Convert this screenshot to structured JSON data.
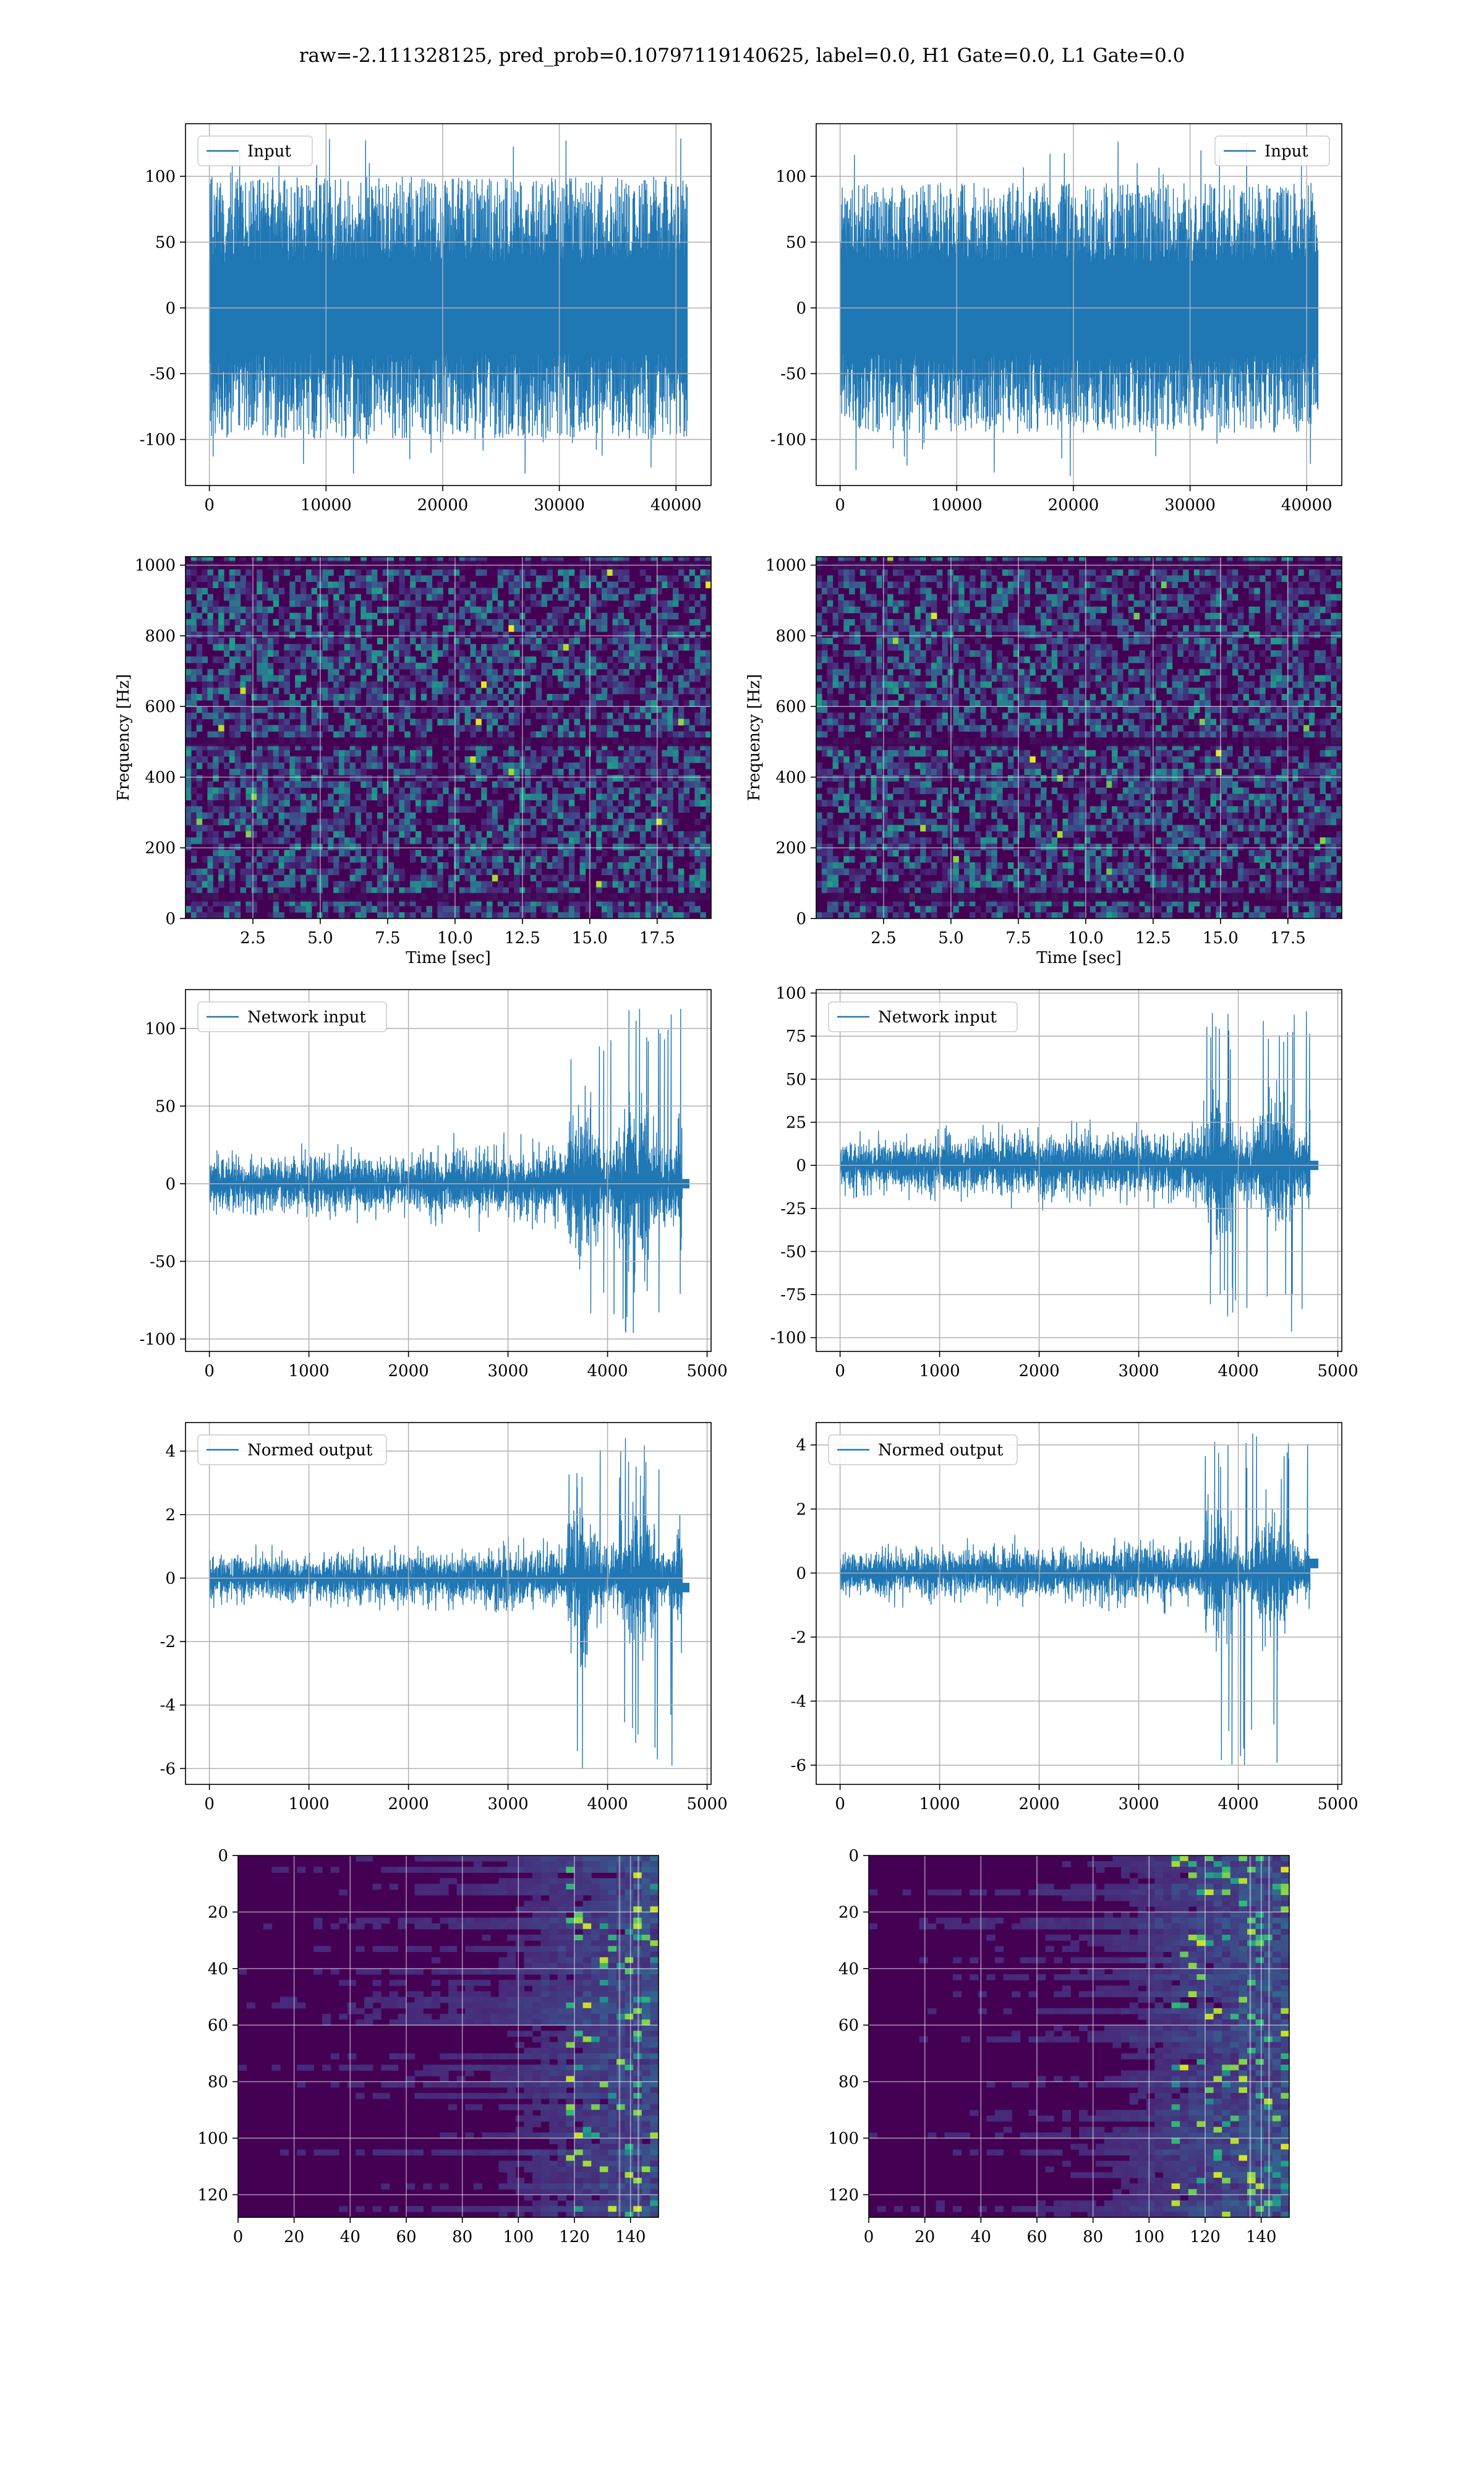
{
  "suptitle": "raw=-2.111328125, pred_prob=0.10797119140625, label=0.0, H1 Gate=0.0, L1 Gate=0.0",
  "colors": {
    "line": "#1f77b4",
    "grid": "#b0b0b0",
    "viridis_low": "#440154",
    "viridis_high": "#fde725"
  },
  "chart_data": [
    {
      "id": "input-h1",
      "type": "line",
      "legend": "Input",
      "legend_loc": "upper-left",
      "grid": true,
      "xlim": [
        -2048,
        43008
      ],
      "ylim": [
        -135,
        140
      ],
      "xticks": [
        0,
        10000,
        20000,
        30000,
        40000
      ],
      "yticks": [
        -100,
        -50,
        0,
        50,
        100
      ],
      "signal": {
        "n": 40960,
        "core": [
          -35,
          35
        ],
        "envelope": [
          -100,
          100
        ],
        "peaks": [
          -128,
          130
        ]
      }
    },
    {
      "id": "input-l1",
      "type": "line",
      "legend": "Input",
      "legend_loc": "upper-right",
      "grid": true,
      "xlim": [
        -2048,
        43008
      ],
      "ylim": [
        -135,
        140
      ],
      "xticks": [
        0,
        10000,
        20000,
        30000,
        40000
      ],
      "yticks": [
        -100,
        -50,
        0,
        50,
        100
      ],
      "signal": {
        "n": 40960,
        "core": [
          -35,
          35
        ],
        "envelope": [
          -95,
          95
        ],
        "peaks": [
          -128,
          128
        ]
      }
    },
    {
      "id": "spec-h1",
      "type": "heatmap",
      "grid": true,
      "xlabel": "Time [sec]",
      "ylabel": "Frequency [Hz]",
      "xlim": [
        0,
        19.5
      ],
      "ylim": [
        0,
        1024
      ],
      "xticks": [
        2.5,
        5.0,
        7.5,
        10.0,
        12.5,
        15.0,
        17.5
      ],
      "yticks": [
        0,
        200,
        400,
        600,
        800,
        1000
      ],
      "dark_bands_hz": [
        60,
        500,
        1000
      ]
    },
    {
      "id": "spec-l1",
      "type": "heatmap",
      "grid": true,
      "xlabel": "Time [sec]",
      "ylabel": "Frequency [Hz]",
      "xlim": [
        0,
        19.5
      ],
      "ylim": [
        0,
        1024
      ],
      "xticks": [
        2.5,
        5.0,
        7.5,
        10.0,
        12.5,
        15.0,
        17.5
      ],
      "yticks": [
        0,
        200,
        400,
        600,
        800,
        1000
      ],
      "dark_bands_hz": [
        60,
        500,
        1000
      ]
    },
    {
      "id": "net-h1",
      "type": "line",
      "legend": "Network input",
      "legend_loc": "upper-left",
      "grid": true,
      "xlim": [
        -240,
        5040
      ],
      "ylim": [
        -108,
        125
      ],
      "xticks": [
        0,
        1000,
        2000,
        3000,
        4000,
        5000
      ],
      "yticks": [
        -100,
        -50,
        0,
        50,
        100
      ],
      "signal": {
        "n": 4800,
        "end": 4750,
        "tail_end": 4820,
        "tail_offset": 0,
        "quiet": 20,
        "burst": 65,
        "burst_start": 3600,
        "peaks": [
          -97,
          114
        ]
      }
    },
    {
      "id": "net-l1",
      "type": "line",
      "legend": "Network input",
      "legend_loc": "upper-left",
      "grid": true,
      "xlim": [
        -240,
        5040
      ],
      "ylim": [
        -108,
        102
      ],
      "xticks": [
        0,
        1000,
        2000,
        3000,
        4000,
        5000
      ],
      "yticks": [
        -100,
        -75,
        -50,
        -25,
        0,
        25,
        50,
        75,
        100
      ],
      "signal": {
        "n": 4800,
        "end": 4720,
        "tail_end": 4800,
        "tail_offset": 0,
        "quiet": 18,
        "burst": 55,
        "burst_start": 3650,
        "peaks": [
          -100,
          94
        ]
      }
    },
    {
      "id": "out-h1",
      "type": "line",
      "legend": "Normed output",
      "legend_loc": "upper-left",
      "grid": true,
      "xlim": [
        -240,
        5040
      ],
      "ylim": [
        -6.5,
        4.9
      ],
      "xticks": [
        0,
        1000,
        2000,
        3000,
        4000,
        5000
      ],
      "yticks": [
        -6,
        -4,
        -2,
        0,
        2,
        4
      ],
      "signal": {
        "n": 4800,
        "end": 4750,
        "tail_end": 4820,
        "tail_offset": -0.3,
        "quiet": 0.8,
        "burst": 2.6,
        "burst_start": 3600,
        "peaks": [
          -6.1,
          4.5
        ]
      }
    },
    {
      "id": "out-l1",
      "type": "line",
      "legend": "Normed output",
      "legend_loc": "upper-left",
      "grid": true,
      "xlim": [
        -240,
        5040
      ],
      "ylim": [
        -6.6,
        4.7
      ],
      "xticks": [
        0,
        1000,
        2000,
        3000,
        4000,
        5000
      ],
      "yticks": [
        -6,
        -4,
        -2,
        0,
        2,
        4
      ],
      "signal": {
        "n": 4800,
        "end": 4720,
        "tail_end": 4800,
        "tail_offset": 0.3,
        "quiet": 0.8,
        "burst": 2.4,
        "burst_start": 3650,
        "peaks": [
          -6.1,
          4.5
        ]
      }
    },
    {
      "id": "feat-h1",
      "type": "heatmap",
      "grid": true,
      "invert_y": true,
      "xlim": [
        0,
        150
      ],
      "ylim": [
        0,
        128
      ],
      "xticks": [
        0,
        20,
        40,
        60,
        80,
        100,
        120,
        140
      ],
      "yticks": [
        0,
        20,
        40,
        60,
        80,
        100,
        120
      ],
      "activity_start": 100
    },
    {
      "id": "feat-l1",
      "type": "heatmap",
      "grid": true,
      "invert_y": true,
      "xlim": [
        0,
        150
      ],
      "ylim": [
        0,
        128
      ],
      "xticks": [
        0,
        20,
        40,
        60,
        80,
        100,
        120,
        140
      ],
      "yticks": [
        0,
        20,
        40,
        60,
        80,
        100,
        120
      ],
      "activity_start": 90
    }
  ]
}
